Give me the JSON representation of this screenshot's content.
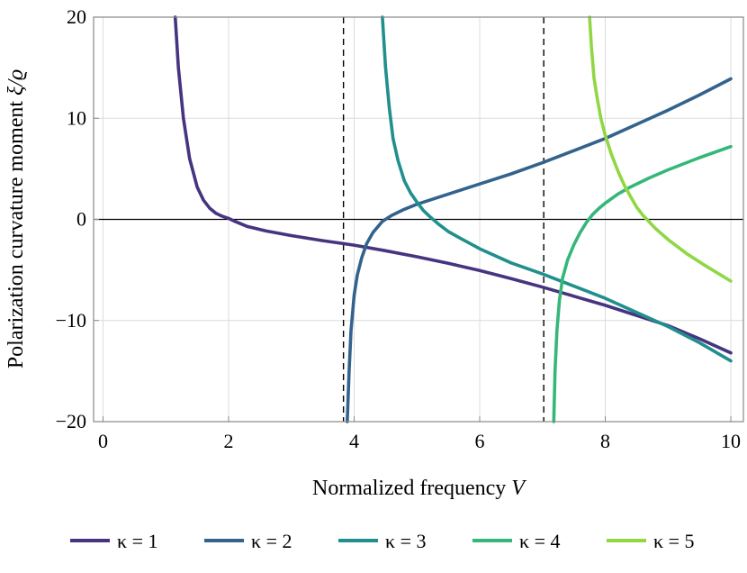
{
  "chart_data": {
    "type": "line",
    "title": "",
    "xlabel": "Normalized frequency",
    "xlabel_var": "V",
    "ylabel": "Polarization curvature moment",
    "ylabel_var": "ξ/ϱ",
    "xlim": [
      -0.15,
      10.2
    ],
    "ylim": [
      -20,
      20
    ],
    "xticks": [
      0,
      2,
      4,
      6,
      8,
      10
    ],
    "yticks": [
      -20,
      -10,
      0,
      10,
      20
    ],
    "xtick_labels": [
      "0",
      "2",
      "4",
      "6",
      "8",
      "10"
    ],
    "ytick_labels": [
      "−20",
      "−10",
      "0",
      "10",
      "20"
    ],
    "grid": true,
    "zero_line": 0,
    "vertical_reference_lines": [
      3.83,
      7.02
    ],
    "legend_position": "bottom",
    "series": [
      {
        "name": "κ = 1",
        "color": "#463480",
        "x": [
          1.15,
          1.2,
          1.28,
          1.38,
          1.5,
          1.6,
          1.7,
          1.8,
          1.9,
          2.0,
          2.1,
          2.3,
          2.6,
          3.0,
          3.5,
          4.0,
          4.5,
          5.0,
          5.5,
          6.0,
          6.5,
          7.0,
          7.5,
          8.0,
          8.5,
          9.0,
          9.5,
          10.0
        ],
        "y": [
          20,
          15,
          10,
          6,
          3.2,
          1.9,
          1.1,
          0.6,
          0.3,
          0.1,
          -0.2,
          -0.7,
          -1.15,
          -1.6,
          -2.1,
          -2.55,
          -3.1,
          -3.7,
          -4.35,
          -5.05,
          -5.85,
          -6.7,
          -7.6,
          -8.5,
          -9.5,
          -10.5,
          -11.8,
          -13.2
        ]
      },
      {
        "name": "κ = 2",
        "color": "#33638d",
        "x": [
          3.89,
          3.92,
          3.95,
          4.0,
          4.05,
          4.12,
          4.2,
          4.3,
          4.45,
          4.6,
          4.8,
          5.0,
          5.3,
          5.6,
          6.0,
          6.5,
          7.0,
          7.5,
          8.0,
          8.5,
          9.0,
          9.5,
          10.0
        ],
        "y": [
          -20,
          -15,
          -11,
          -7.5,
          -5.5,
          -3.8,
          -2.4,
          -1.3,
          -0.2,
          0.4,
          1.0,
          1.5,
          2.1,
          2.7,
          3.5,
          4.5,
          5.6,
          6.8,
          8.0,
          9.4,
          10.8,
          12.3,
          13.9
        ]
      },
      {
        "name": "κ = 3",
        "color": "#218f8d",
        "x": [
          4.45,
          4.5,
          4.56,
          4.62,
          4.7,
          4.8,
          4.9,
          5.0,
          5.1,
          5.2,
          5.35,
          5.5,
          5.7,
          6.0,
          6.5,
          7.0,
          7.5,
          8.0,
          8.5,
          9.0,
          9.5,
          10.0
        ],
        "y": [
          20,
          15,
          11,
          8,
          5.8,
          3.8,
          2.6,
          1.7,
          0.9,
          0.3,
          -0.5,
          -1.2,
          -1.9,
          -2.9,
          -4.3,
          -5.4,
          -6.6,
          -7.8,
          -9.2,
          -10.6,
          -12.2,
          -14.0
        ]
      },
      {
        "name": "κ = 4",
        "color": "#35b779",
        "x": [
          7.18,
          7.2,
          7.23,
          7.27,
          7.32,
          7.4,
          7.5,
          7.6,
          7.7,
          7.8,
          7.9,
          8.0,
          8.2,
          8.4,
          8.7,
          9.0,
          9.5,
          10.0
        ],
        "y": [
          -20,
          -15,
          -11,
          -8,
          -5.8,
          -4.0,
          -2.5,
          -1.3,
          -0.3,
          0.5,
          1.1,
          1.6,
          2.5,
          3.2,
          4.1,
          4.9,
          6.1,
          7.2
        ]
      },
      {
        "name": "κ = 5",
        "color": "#90d743",
        "x": [
          7.75,
          7.78,
          7.82,
          7.87,
          7.93,
          8.0,
          8.1,
          8.2,
          8.3,
          8.4,
          8.5,
          8.6,
          8.8,
          9.0,
          9.3,
          9.6,
          10.0
        ],
        "y": [
          20,
          17,
          14,
          12,
          10,
          8.3,
          6.4,
          4.8,
          3.4,
          2.3,
          1.2,
          0.4,
          -0.9,
          -2.0,
          -3.4,
          -4.6,
          -6.1
        ]
      }
    ]
  }
}
